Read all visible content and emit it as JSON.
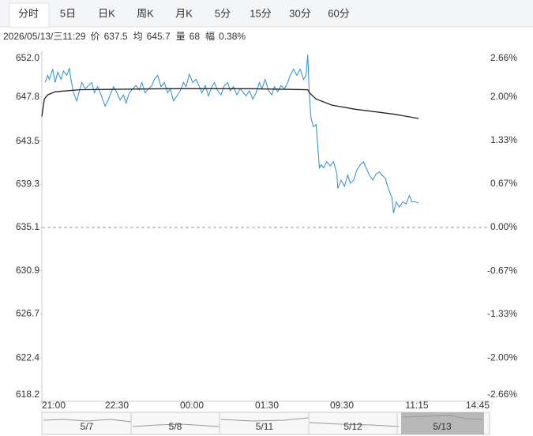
{
  "tabs": [
    "分时",
    "5日",
    "日K",
    "周K",
    "月K",
    "5分",
    "15分",
    "30分",
    "60分"
  ],
  "info": {
    "time": "2026/05/13/三11:29",
    "items": [
      {
        "label": "价",
        "value": "637.5"
      },
      {
        "label": "均",
        "value": "645.7"
      },
      {
        "label": "量",
        "value": "68"
      },
      {
        "label": "幅",
        "value": "0.38%"
      }
    ]
  },
  "chart_data": {
    "type": "line",
    "xlim": [
      0,
      540
    ],
    "xticks": [
      {
        "value": 0,
        "label": "21:00"
      },
      {
        "value": 90,
        "label": "22:30"
      },
      {
        "value": 180,
        "label": "00:00"
      },
      {
        "value": 270,
        "label": "01:30"
      },
      {
        "value": 360,
        "label": "09:30"
      },
      {
        "value": 450,
        "label": "11:15"
      },
      {
        "value": 540,
        "label": "14:45"
      }
    ],
    "ylim": [
      618.2,
      652.0
    ],
    "yticks": [
      {
        "value": 652.0,
        "label": "652.0"
      },
      647.8,
      643.5,
      639.3,
      635.1,
      630.9,
      626.7,
      622.4,
      618.2
    ],
    "y2lim": [
      -2.66,
      2.66
    ],
    "y2ticks": [
      {
        "value": 2.66,
        "label": "2.66%"
      },
      {
        "value": 2.0,
        "label": "2.00%"
      },
      {
        "value": 1.33,
        "label": "1.33%"
      },
      {
        "value": 0.67,
        "label": "0.67%"
      },
      {
        "value": 0,
        "label": "0.00%"
      },
      {
        "value": -0.67,
        "label": "-0.67%"
      },
      {
        "value": -1.33,
        "label": "-1.33%"
      },
      {
        "value": -2.0,
        "label": "-2.00%"
      },
      {
        "value": -2.66,
        "label": "-2.66%"
      }
    ],
    "up_color": "#e02020",
    "down_color": "#1a9a1a",
    "flat_color": "#333333",
    "series": [
      {
        "color": "#2a8fd0",
        "x": [
          4,
          7,
          9,
          13,
          16,
          19,
          23,
          26,
          30,
          33,
          35,
          38,
          42,
          45,
          48,
          52,
          56,
          60,
          63,
          67,
          71,
          76,
          79,
          82,
          86,
          90,
          94,
          98,
          101,
          105,
          109,
          113,
          117,
          120,
          124,
          128,
          132,
          135,
          139,
          143,
          147,
          151,
          154,
          158,
          162,
          166,
          170,
          173,
          177,
          181,
          185,
          189,
          192,
          196,
          200,
          204,
          207,
          211,
          215,
          219,
          223,
          226,
          230,
          234,
          238,
          242,
          245,
          249,
          253,
          257,
          261,
          264,
          268,
          272,
          276,
          279,
          283,
          287,
          291,
          295,
          298,
          302,
          306,
          310,
          314,
          317,
          319,
          321,
          323,
          326,
          329,
          331,
          333,
          335,
          338,
          342,
          346,
          350,
          354,
          355,
          359,
          363,
          367,
          370,
          374,
          378,
          382,
          386,
          389,
          393,
          397,
          401,
          405,
          408,
          412,
          416,
          420,
          422,
          425,
          429,
          433,
          437,
          441,
          444,
          448,
          452
        ],
        "values": [
          649.2,
          649.9,
          649.5,
          650.5,
          649.2,
          650.2,
          649.5,
          650.3,
          649.9,
          650.6,
          649.5,
          648.2,
          647.4,
          648.4,
          649.2,
          648.6,
          648.9,
          649.2,
          648.2,
          648.8,
          648.0,
          646.9,
          647.4,
          648.0,
          648.8,
          648.2,
          647.5,
          648.0,
          647.2,
          648.2,
          648.6,
          648.9,
          648.5,
          649.2,
          648.2,
          648.6,
          648.9,
          649.5,
          649.9,
          648.8,
          649.2,
          648.2,
          648.6,
          647.4,
          647.9,
          648.4,
          649.2,
          648.8,
          650.0,
          649.2,
          649.5,
          648.8,
          648.2,
          648.9,
          647.9,
          648.8,
          649.2,
          648.4,
          648.0,
          648.9,
          649.2,
          648.4,
          648.8,
          648.0,
          648.6,
          648.2,
          647.9,
          648.4,
          647.6,
          648.2,
          649.2,
          648.6,
          649.5,
          648.4,
          648.0,
          648.8,
          648.3,
          648.9,
          648.6,
          649.2,
          649.9,
          650.5,
          649.9,
          650.5,
          649.5,
          649.9,
          651.9,
          648.0,
          645.7,
          644.9,
          645.1,
          643.0,
          640.9,
          641.2,
          640.9,
          641.5,
          641.1,
          641.5,
          640.3,
          638.9,
          639.7,
          639.1,
          640.2,
          639.4,
          639.7,
          640.7,
          641.2,
          641.5,
          640.9,
          640.2,
          639.7,
          640.3,
          640.5,
          640.2,
          639.9,
          638.8,
          638.0,
          636.5,
          637.6,
          637.1,
          637.6,
          637.4,
          638.2,
          637.6,
          637.6,
          637.5
        ]
      },
      {
        "color": "#222222",
        "x": [
          0,
          3,
          7,
          16,
          45,
          150,
          250,
          319,
          321,
          329,
          348,
          376,
          405,
          424,
          452
        ],
        "values": [
          645.9,
          647.6,
          648.0,
          648.3,
          648.5,
          648.6,
          648.6,
          648.5,
          648.2,
          647.6,
          647.0,
          646.6,
          646.3,
          646.1,
          645.7
        ]
      }
    ]
  },
  "navigator": {
    "dates": [
      "5/7",
      "5/8",
      "5/11",
      "5/12",
      "5/13"
    ]
  }
}
